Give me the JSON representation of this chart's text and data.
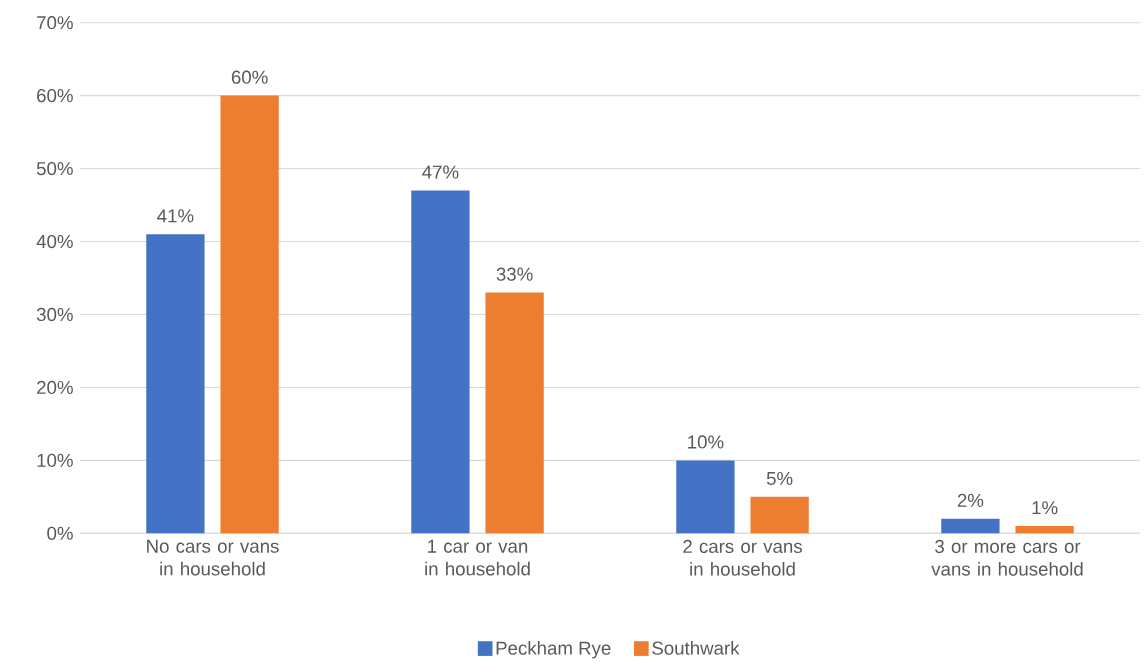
{
  "chart_data": {
    "type": "bar",
    "categories": [
      "No cars or vans in household",
      "1 car or van in household",
      "2 cars or vans in household",
      "3 or more cars or vans in household"
    ],
    "series": [
      {
        "name": "Peckham Rye",
        "color": "#4472c4",
        "values": [
          41,
          47,
          10,
          2
        ],
        "value_labels": [
          "41%",
          "47%",
          "10%",
          "2%"
        ]
      },
      {
        "name": "Southwark",
        "color": "#ed7d31",
        "values": [
          60,
          33,
          5,
          1
        ],
        "value_labels": [
          "60%",
          "33%",
          "5%",
          "1%"
        ]
      }
    ],
    "ylim": [
      0,
      70
    ],
    "yticks": [
      {
        "value": 0,
        "label": "0%"
      },
      {
        "value": 10,
        "label": "10%"
      },
      {
        "value": 20,
        "label": "20%"
      },
      {
        "value": 30,
        "label": "30%"
      },
      {
        "value": 40,
        "label": "40%"
      },
      {
        "value": 50,
        "label": "50%"
      },
      {
        "value": 60,
        "label": "60%"
      },
      {
        "value": 70,
        "label": "70%"
      }
    ],
    "grid": "y",
    "legend": "bottom"
  }
}
